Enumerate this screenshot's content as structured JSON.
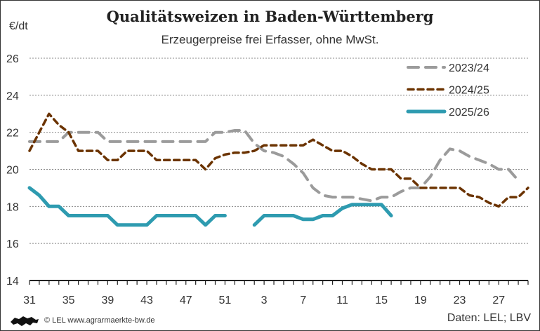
{
  "chart_data": {
    "type": "line",
    "title": "Qualitätsweizen in Baden-Württemberg",
    "subtitle": "Erzeugerpreise frei Erfasser, ohne MwSt.",
    "ylabel": "€/dt",
    "xlabel": "",
    "ylim": [
      14,
      26
    ],
    "yticks": [
      "14",
      "16",
      "18",
      "20",
      "22",
      "24",
      "26"
    ],
    "grid": true,
    "legend_position": "top-right",
    "x": [
      31,
      32,
      33,
      34,
      35,
      36,
      37,
      38,
      39,
      40,
      41,
      42,
      43,
      44,
      45,
      46,
      47,
      48,
      49,
      50,
      51,
      52,
      1,
      2,
      3,
      4,
      5,
      6,
      7,
      8,
      9,
      10,
      11,
      12,
      13,
      14,
      15,
      16,
      17,
      18,
      19,
      20,
      21,
      22,
      23,
      24,
      25,
      26,
      27,
      28,
      29,
      30
    ],
    "xticks": [
      "31",
      "35",
      "39",
      "43",
      "47",
      "51",
      "3",
      "7",
      "11",
      "15",
      "19",
      "23",
      "27"
    ],
    "series": [
      {
        "name": "2023/24",
        "color": "#9b9b9b",
        "style": "long-dash",
        "values": [
          21.5,
          21.5,
          21.5,
          21.5,
          22.0,
          22.0,
          22.0,
          22.0,
          21.5,
          21.5,
          21.5,
          21.5,
          21.5,
          21.5,
          21.5,
          21.5,
          21.5,
          21.5,
          21.5,
          22.0,
          22.0,
          22.1,
          22.1,
          21.4,
          21.0,
          20.9,
          20.7,
          20.3,
          19.8,
          19.0,
          18.6,
          18.5,
          18.5,
          18.5,
          18.4,
          18.3,
          18.5,
          18.5,
          18.8,
          19.0,
          19.0,
          19.6,
          20.5,
          21.1,
          21.0,
          20.7,
          20.5,
          20.3,
          20.0,
          20.0,
          19.4,
          null
        ]
      },
      {
        "name": "2024/25",
        "color": "#6b3300",
        "style": "short-dash",
        "values": [
          21.0,
          22.0,
          23.0,
          22.4,
          22.0,
          21.0,
          21.0,
          21.0,
          20.5,
          20.5,
          21.0,
          21.0,
          21.0,
          20.5,
          20.5,
          20.5,
          20.5,
          20.5,
          20.0,
          20.6,
          20.8,
          20.9,
          20.9,
          21.0,
          21.3,
          21.3,
          21.3,
          21.3,
          21.3,
          21.6,
          21.3,
          21.0,
          21.0,
          20.7,
          20.3,
          20.0,
          20.0,
          20.0,
          19.5,
          19.5,
          19.0,
          19.0,
          19.0,
          19.0,
          19.0,
          18.6,
          18.5,
          18.2,
          18.0,
          18.5,
          18.5,
          19.0
        ]
      },
      {
        "name": "2025/26",
        "color": "#2e9bb0",
        "style": "solid",
        "values": [
          19.0,
          18.6,
          18.0,
          18.0,
          17.5,
          17.5,
          17.5,
          17.5,
          17.5,
          17.0,
          17.0,
          17.0,
          17.0,
          17.5,
          17.5,
          17.5,
          17.5,
          17.5,
          17.0,
          17.5,
          17.5,
          null,
          null,
          17.0,
          17.5,
          17.5,
          17.5,
          17.5,
          17.3,
          17.3,
          17.5,
          17.5,
          17.9,
          18.1,
          18.1,
          18.1,
          18.1,
          17.5,
          null,
          null,
          null,
          null,
          null,
          null,
          null,
          null,
          null,
          null,
          null,
          null,
          null,
          null
        ]
      }
    ]
  },
  "footer": {
    "credit": "© LEL www.agrarmaerkte-bw.de",
    "source": "Daten: LEL; LBV",
    "logo_icon": "baden-wuerttemberg-lions-icon"
  }
}
